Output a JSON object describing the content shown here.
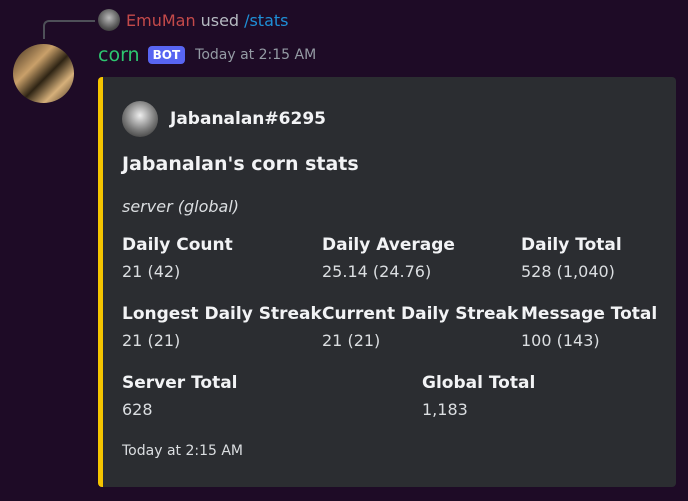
{
  "reply": {
    "user": "EmuMan",
    "used": "used",
    "command": "/stats"
  },
  "message": {
    "author": "corn",
    "badge": "BOT",
    "timestamp": "Today at 2:15 AM"
  },
  "embed": {
    "accent": "#f5c400",
    "author": "Jabanalan#6295",
    "title": "Jabanalan's corn stats",
    "description": "server (global)",
    "fields": [
      {
        "name": "Daily Count",
        "value": "21 (42)"
      },
      {
        "name": "Daily Average",
        "value": "25.14 (24.76)"
      },
      {
        "name": "Daily Total",
        "value": "528 (1,040)"
      },
      {
        "name": "Longest Daily Streak",
        "value": "21 (21)"
      },
      {
        "name": "Current Daily Streak",
        "value": "21 (21)"
      },
      {
        "name": "Message Total",
        "value": "100 (143)"
      },
      {
        "name": "Server Total",
        "value": "628"
      },
      {
        "name": "Global Total",
        "value": "1,183"
      }
    ],
    "footer": "Today at 2:15 AM"
  }
}
